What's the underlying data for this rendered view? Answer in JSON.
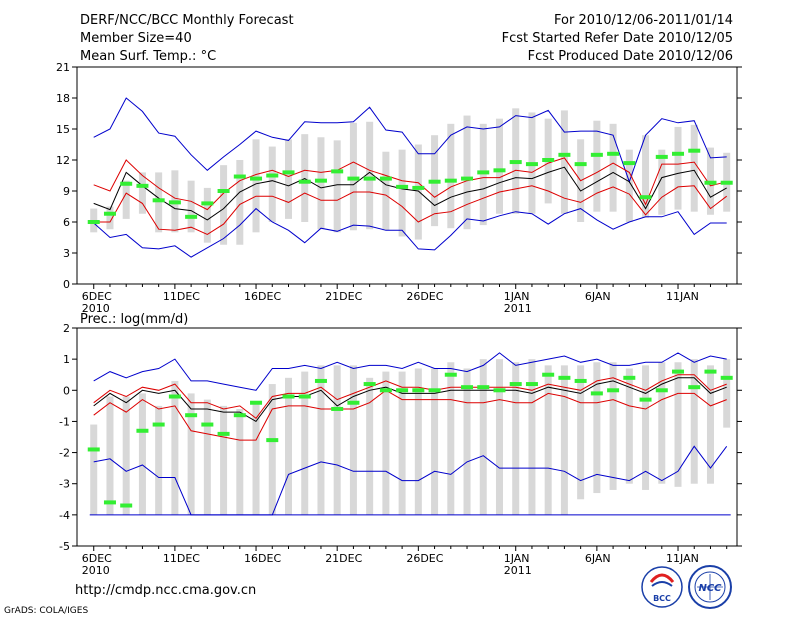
{
  "header": {
    "title": "DERF/NCC/BCC Monthly Forecast",
    "member_size": "Member Size=40",
    "period": "For 2010/12/06-2011/01/14",
    "fcst_started": "Fcst Started Refer Date 2010/12/05",
    "fcst_produced": "Fcst Produced Date 2010/12/06"
  },
  "colors": {
    "box": "#d8d8d8",
    "median": "#000000",
    "inner_band": "#dd0000",
    "outer_band": "#0000cc",
    "observed": "#33ee33",
    "frame": "#000000"
  },
  "chart_data": [
    {
      "type": "box",
      "title": "Mean Surf. Temp.: °C",
      "ylim": [
        0,
        21
      ],
      "yticks": [
        0,
        3,
        6,
        9,
        12,
        15,
        18,
        21
      ],
      "xticks": [
        {
          "day": 1,
          "label": "6DEC",
          "sub": "2010"
        },
        {
          "day": 6,
          "label": "11DEC",
          "sub": ""
        },
        {
          "day": 11,
          "label": "16DEC",
          "sub": ""
        },
        {
          "day": 16,
          "label": "21DEC",
          "sub": ""
        },
        {
          "day": 21,
          "label": "26DEC",
          "sub": ""
        },
        {
          "day": 27,
          "label": "1JAN",
          "sub": "2011"
        },
        {
          "day": 32,
          "label": "6JAN",
          "sub": ""
        },
        {
          "day": 37,
          "label": "11JAN",
          "sub": ""
        }
      ],
      "days": [
        1,
        2,
        3,
        4,
        5,
        6,
        7,
        8,
        9,
        10,
        11,
        12,
        13,
        14,
        15,
        16,
        17,
        18,
        19,
        20,
        21,
        22,
        23,
        24,
        25,
        26,
        27,
        28,
        29,
        30,
        31,
        32,
        33,
        34,
        35,
        36,
        37,
        38,
        39,
        40
      ],
      "box_low": [
        5.0,
        5.3,
        6.3,
        6.8,
        5.0,
        5.0,
        5.0,
        4.0,
        3.8,
        3.8,
        5.0,
        6.0,
        6.3,
        6.0,
        5.3,
        5.0,
        5.2,
        5.3,
        5.2,
        4.6,
        4.3,
        5.6,
        5.4,
        5.3,
        5.7,
        6.8,
        6.8,
        6.8,
        7.8,
        6.8,
        6.0,
        7.0,
        7.0,
        6.0,
        6.4,
        6.7,
        7.2,
        7.0,
        6.7,
        7.0
      ],
      "box_high": [
        7.3,
        7.5,
        10.0,
        10.8,
        10.8,
        11.0,
        10.0,
        9.3,
        11.5,
        12.0,
        14.0,
        13.3,
        14.0,
        14.5,
        14.2,
        13.9,
        15.6,
        15.7,
        12.8,
        13.0,
        13.5,
        14.4,
        15.5,
        16.3,
        15.5,
        16.0,
        17.0,
        16.6,
        16.0,
        16.8,
        14.0,
        15.8,
        15.5,
        13.0,
        14.4,
        13.0,
        15.2,
        15.4,
        13.2,
        12.7
      ],
      "median": [
        7.8,
        7.2,
        10.8,
        9.5,
        8.3,
        7.3,
        7.1,
        6.2,
        7.3,
        8.9,
        9.7,
        10.0,
        9.5,
        10.2,
        9.3,
        9.6,
        9.6,
        10.8,
        9.6,
        9.2,
        9.0,
        7.6,
        8.4,
        8.9,
        9.2,
        9.8,
        10.3,
        10.2,
        10.8,
        11.3,
        9.0,
        9.9,
        10.8,
        9.9,
        7.3,
        10.3,
        10.7,
        11.0,
        8.4,
        9.3
      ],
      "inner_hi": [
        9.6,
        9.0,
        12.0,
        10.5,
        9.3,
        8.3,
        8.0,
        7.2,
        8.8,
        10.0,
        10.6,
        11.0,
        10.4,
        11.0,
        10.8,
        11.0,
        11.8,
        11.0,
        10.5,
        10.0,
        9.8,
        8.4,
        9.4,
        10.0,
        10.3,
        10.3,
        11.0,
        10.8,
        11.7,
        12.2,
        10.0,
        10.8,
        11.7,
        10.8,
        7.7,
        11.6,
        11.6,
        11.8,
        9.5,
        9.9
      ],
      "inner_lo": [
        6.0,
        6.0,
        8.8,
        7.8,
        5.3,
        5.2,
        5.5,
        4.8,
        5.8,
        7.7,
        8.5,
        8.5,
        7.9,
        8.8,
        8.1,
        8.1,
        8.9,
        8.9,
        8.6,
        7.5,
        6.0,
        6.8,
        7.0,
        7.7,
        8.3,
        8.9,
        9.2,
        9.5,
        9.0,
        8.3,
        7.9,
        8.8,
        9.4,
        8.7,
        6.7,
        8.4,
        9.4,
        9.5,
        7.3,
        8.5
      ],
      "outer_hi": [
        14.2,
        15.0,
        18.0,
        16.7,
        14.6,
        14.3,
        12.5,
        11.0,
        12.3,
        13.5,
        14.8,
        14.2,
        13.9,
        15.7,
        15.6,
        15.6,
        15.7,
        17.1,
        14.9,
        14.7,
        12.6,
        12.6,
        14.4,
        15.2,
        15.0,
        15.2,
        16.3,
        16.1,
        16.8,
        14.7,
        14.8,
        14.8,
        14.4,
        9.9,
        14.4,
        16.0,
        15.6,
        15.8,
        12.2,
        12.3
      ],
      "outer_lo": [
        5.9,
        4.5,
        4.8,
        3.5,
        3.4,
        3.7,
        2.6,
        3.5,
        4.4,
        5.7,
        7.3,
        6.0,
        5.2,
        4.0,
        5.4,
        5.1,
        5.7,
        5.6,
        5.2,
        5.2,
        3.4,
        3.3,
        4.7,
        6.3,
        6.1,
        6.6,
        7.0,
        6.8,
        5.8,
        6.8,
        7.3,
        6.2,
        5.3,
        6.0,
        6.5,
        6.5,
        7.0,
        4.8,
        5.9,
        5.9
      ],
      "observed": [
        6.0,
        6.8,
        9.7,
        9.5,
        8.1,
        7.9,
        6.5,
        7.8,
        9.0,
        10.4,
        10.2,
        10.5,
        10.8,
        9.9,
        10.0,
        10.9,
        10.2,
        10.2,
        10.2,
        9.4,
        9.3,
        9.9,
        10.0,
        10.2,
        10.8,
        11.0,
        11.8,
        11.6,
        12.0,
        12.5,
        11.6,
        12.5,
        12.6,
        11.7,
        8.4,
        12.3,
        12.6,
        12.9,
        9.8,
        9.8
      ]
    },
    {
      "type": "box",
      "title": "Prec.: log(mm/d)",
      "ylim": [
        -5,
        2
      ],
      "yticks": [
        -5,
        -4,
        -3,
        -2,
        -1,
        0,
        1,
        2
      ],
      "xticks": [
        {
          "day": 1,
          "label": "6DEC",
          "sub": "2010"
        },
        {
          "day": 6,
          "label": "11DEC",
          "sub": ""
        },
        {
          "day": 11,
          "label": "16DEC",
          "sub": ""
        },
        {
          "day": 16,
          "label": "21DEC",
          "sub": ""
        },
        {
          "day": 21,
          "label": "26DEC",
          "sub": ""
        },
        {
          "day": 27,
          "label": "1JAN",
          "sub": "2011"
        },
        {
          "day": 32,
          "label": "6JAN",
          "sub": ""
        },
        {
          "day": 37,
          "label": "11JAN",
          "sub": ""
        }
      ],
      "floor": -4,
      "days": [
        1,
        2,
        3,
        4,
        5,
        6,
        7,
        8,
        9,
        10,
        11,
        12,
        13,
        14,
        15,
        16,
        17,
        18,
        19,
        20,
        21,
        22,
        23,
        24,
        25,
        26,
        27,
        28,
        29,
        30,
        31,
        32,
        33,
        34,
        35,
        36,
        37,
        38,
        39,
        40
      ],
      "box_low": [
        -4,
        -4,
        -4,
        -4,
        -4,
        -4,
        -4,
        -4,
        -4,
        -4,
        -4,
        -4,
        -4,
        -4,
        -4,
        -4,
        -4,
        -4,
        -4,
        -4,
        -4,
        -4,
        -4,
        -4,
        -4,
        -4,
        -4,
        -4,
        -4,
        -4,
        -3.5,
        -3.3,
        -3.2,
        -3.0,
        -3.2,
        -3.0,
        -3.1,
        -3.0,
        -3.0,
        -1.2
      ],
      "box_high": [
        -1.1,
        -0.2,
        -0.2,
        -0.1,
        -0.5,
        0.3,
        -0.1,
        -0.3,
        -0.5,
        -0.6,
        -0.4,
        0.2,
        0.4,
        0.6,
        0.8,
        0.8,
        0.8,
        0.4,
        0.6,
        0.6,
        0.7,
        0.7,
        0.9,
        0.7,
        1.0,
        1.0,
        0.9,
        1.0,
        0.8,
        0.8,
        0.8,
        0.9,
        0.9,
        0.7,
        0.8,
        0.9,
        0.9,
        1.0,
        0.8,
        1.0
      ],
      "median": [
        -0.5,
        -0.1,
        -0.4,
        0.0,
        -0.1,
        0.0,
        -0.6,
        -0.6,
        -0.7,
        -0.7,
        -1.0,
        -0.3,
        -0.2,
        -0.2,
        0.0,
        -0.5,
        -0.2,
        0.0,
        0.1,
        -0.1,
        -0.1,
        -0.1,
        0.0,
        0.0,
        0.0,
        0.0,
        0.0,
        -0.1,
        0.1,
        0.0,
        -0.1,
        0.2,
        0.3,
        0.1,
        -0.1,
        0.2,
        0.4,
        0.4,
        -0.1,
        0.1
      ],
      "inner_hi": [
        -0.4,
        0.0,
        -0.2,
        0.1,
        0.0,
        0.2,
        -0.4,
        -0.4,
        -0.6,
        -0.5,
        -0.9,
        -0.2,
        -0.1,
        -0.1,
        0.1,
        -0.3,
        -0.1,
        0.1,
        0.3,
        0.1,
        0.1,
        0.0,
        0.1,
        0.1,
        0.1,
        0.1,
        0.1,
        0.0,
        0.2,
        0.1,
        0.0,
        0.3,
        0.4,
        0.2,
        0.0,
        0.3,
        0.5,
        0.5,
        0.0,
        0.2
      ],
      "inner_lo": [
        -0.8,
        -0.4,
        -0.7,
        -0.3,
        -0.6,
        -0.5,
        -1.3,
        -1.4,
        -1.5,
        -1.6,
        -1.6,
        -0.6,
        -0.5,
        -0.5,
        -0.6,
        -0.6,
        -0.6,
        -0.4,
        0.0,
        -0.3,
        -0.3,
        -0.3,
        -0.3,
        -0.4,
        -0.4,
        -0.3,
        -0.4,
        -0.4,
        -0.1,
        -0.2,
        -0.4,
        -0.4,
        -0.3,
        -0.5,
        -0.6,
        -0.3,
        -0.1,
        -0.1,
        -0.5,
        -0.3
      ],
      "outer_hi": [
        0.3,
        0.6,
        0.4,
        0.6,
        0.7,
        1.0,
        0.3,
        0.3,
        0.2,
        0.1,
        0.0,
        0.7,
        0.7,
        0.8,
        0.7,
        0.9,
        0.7,
        0.8,
        0.8,
        0.7,
        0.9,
        0.7,
        0.7,
        0.6,
        0.8,
        1.2,
        0.8,
        0.9,
        1.0,
        1.1,
        0.9,
        1.0,
        0.8,
        0.8,
        0.9,
        0.9,
        1.2,
        0.9,
        1.1,
        1.0
      ],
      "outer_lo": [
        -2.3,
        -2.2,
        -2.6,
        -2.4,
        -2.8,
        -2.8,
        -4.0,
        -4.0,
        -4.0,
        -4.0,
        -4.0,
        -4.0,
        -2.7,
        -2.5,
        -2.3,
        -2.4,
        -2.6,
        -2.6,
        -2.6,
        -2.9,
        -2.9,
        -2.6,
        -2.7,
        -2.3,
        -2.1,
        -2.5,
        -2.5,
        -2.5,
        -2.5,
        -2.6,
        -2.9,
        -2.7,
        -2.8,
        -2.9,
        -2.6,
        -2.9,
        -2.6,
        -1.8,
        -2.5,
        -1.8
      ],
      "observed": [
        -1.9,
        -3.6,
        -3.7,
        -1.3,
        -1.1,
        -0.2,
        -0.8,
        -1.1,
        -1.4,
        -0.8,
        -0.4,
        -1.6,
        -0.2,
        -0.2,
        0.3,
        -0.6,
        -0.4,
        0.2,
        0.0,
        0.0,
        0.0,
        0.0,
        0.5,
        0.1,
        0.1,
        0.0,
        0.2,
        0.2,
        0.5,
        0.4,
        0.3,
        -0.1,
        0.0,
        0.4,
        -0.3,
        0.0,
        0.6,
        0.1,
        0.6,
        0.4
      ]
    }
  ],
  "footer": {
    "url": "http://cmdp.ncc.cma.gov.cn",
    "credit": "GrADS: COLA/IGES",
    "logo_left": "BCC",
    "logo_right": "NCC"
  }
}
